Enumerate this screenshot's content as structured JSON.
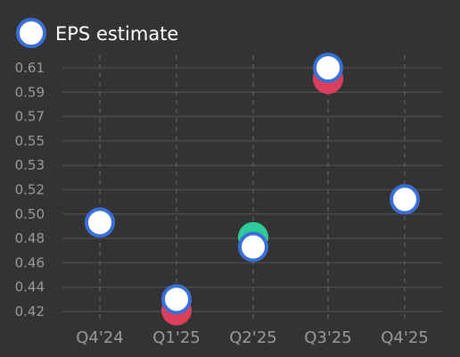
{
  "chart_data": {
    "type": "scatter",
    "categories": [
      "Q4'24",
      "Q1'25",
      "Q2'25",
      "Q3'25",
      "Q4'25"
    ],
    "yticks": [
      "0.61",
      "0.59",
      "0.57",
      "0.55",
      "0.53",
      "0.52",
      "0.50",
      "0.48",
      "0.46",
      "0.44",
      "0.42"
    ],
    "legend": {
      "label": "EPS estimate",
      "position": "top-left"
    },
    "series": [
      {
        "name": "EPS estimate",
        "values": [
          0.493,
          0.43,
          0.473,
          0.61,
          0.512
        ]
      }
    ],
    "actuals": [
      null,
      0.421,
      0.481,
      0.601,
      null
    ],
    "grid": true,
    "colors": {
      "estimate_fill": "#ffffff",
      "estimate_stroke": "#3a6fd8",
      "beat": "#2ecc9a",
      "miss": "#dc3f5b",
      "background": "#333333",
      "grid": "#4a4a4a",
      "tick_text": "#9a9a9a"
    }
  }
}
